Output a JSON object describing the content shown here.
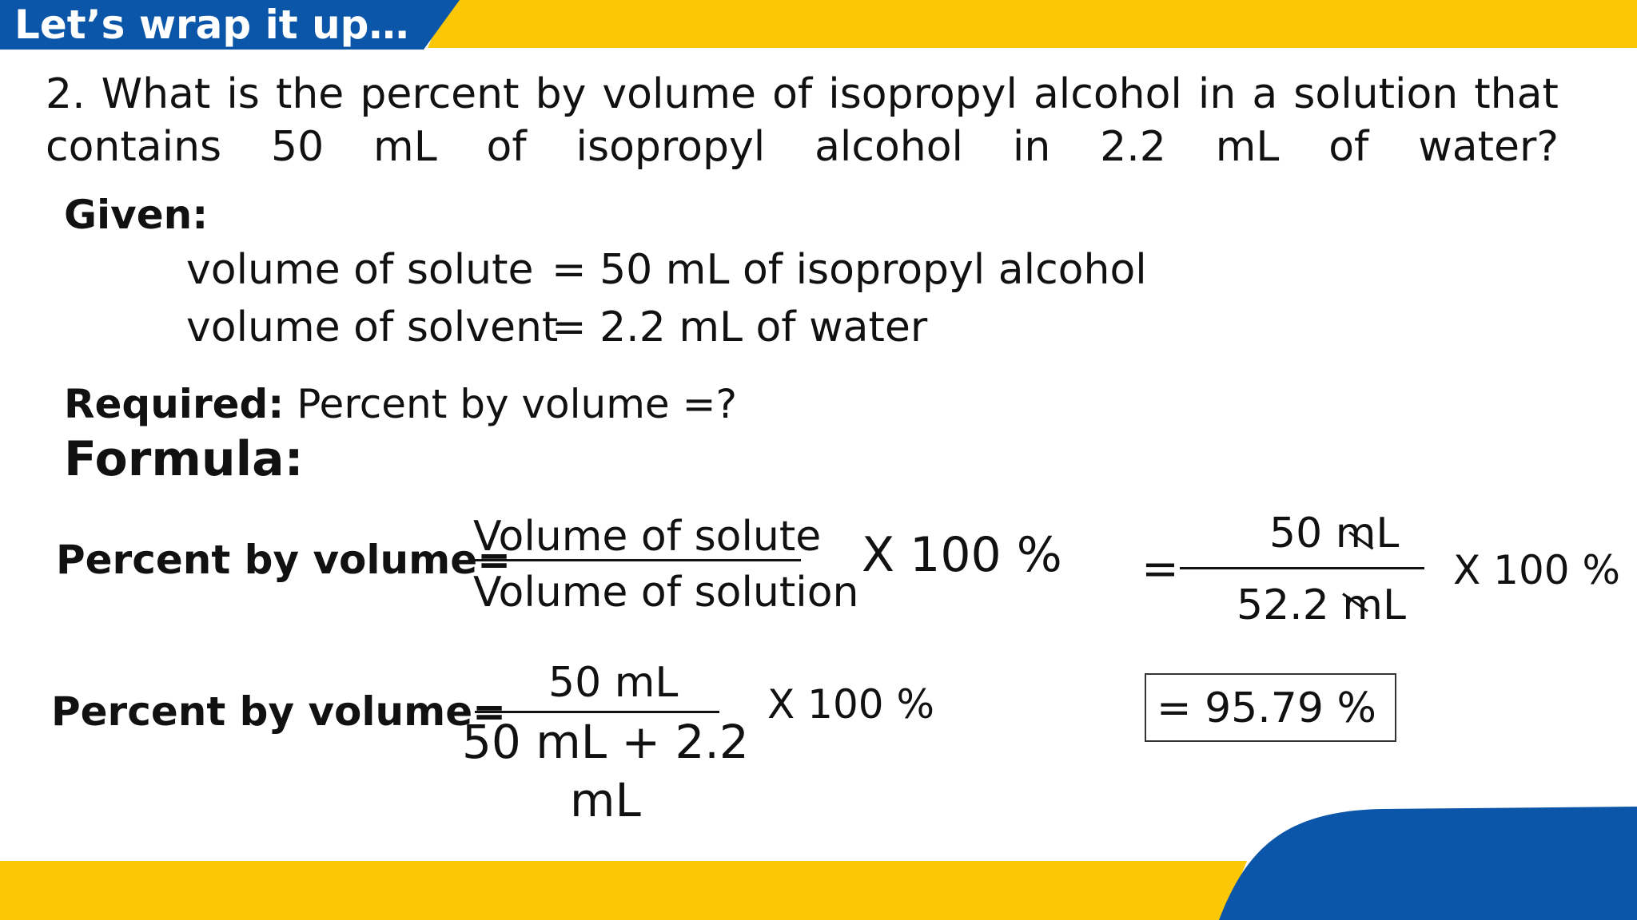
{
  "header": {
    "title": "Let’s wrap it up…"
  },
  "question": {
    "line1": [
      "2.",
      "What",
      "is",
      "the",
      "percent",
      "by",
      "volume",
      "of",
      "isopropyl",
      "alcohol",
      "in",
      "a",
      "solution",
      "that"
    ],
    "line2": [
      "contains",
      "50",
      "mL",
      "of",
      "isopropyl",
      "alcohol",
      "in",
      "2.2",
      "mL",
      "of",
      "water?"
    ]
  },
  "given": {
    "label": "Given:",
    "solute_key": "volume of solute",
    "solute_value": "= 50 mL of isopropyl alcohol",
    "solvent_key": "volume of solvent",
    "solvent_value": "= 2.2 mL of water"
  },
  "required": {
    "label": "Required:",
    "text": " Percent by volume =?"
  },
  "formula": {
    "label": "Formula:",
    "row1": {
      "lhs": "Percent by volume=",
      "numerator": "Volume of solute",
      "denominator": "Volume of solution",
      "multiplier": "X 100 %"
    },
    "row1_right": {
      "equals": "=",
      "numerator": "50 mL",
      "denominator": "52.2 mL",
      "multiplier": "X 100 %"
    },
    "row2": {
      "lhs": "Percent by volume=",
      "numerator": "50 mL",
      "denominator_line1": "50 mL + 2.2",
      "denominator_line2": "mL",
      "multiplier": "X 100 %"
    },
    "result": "= 95.79 %"
  },
  "colors": {
    "blue": "#0b56a8",
    "yellow": "#fcc707"
  }
}
